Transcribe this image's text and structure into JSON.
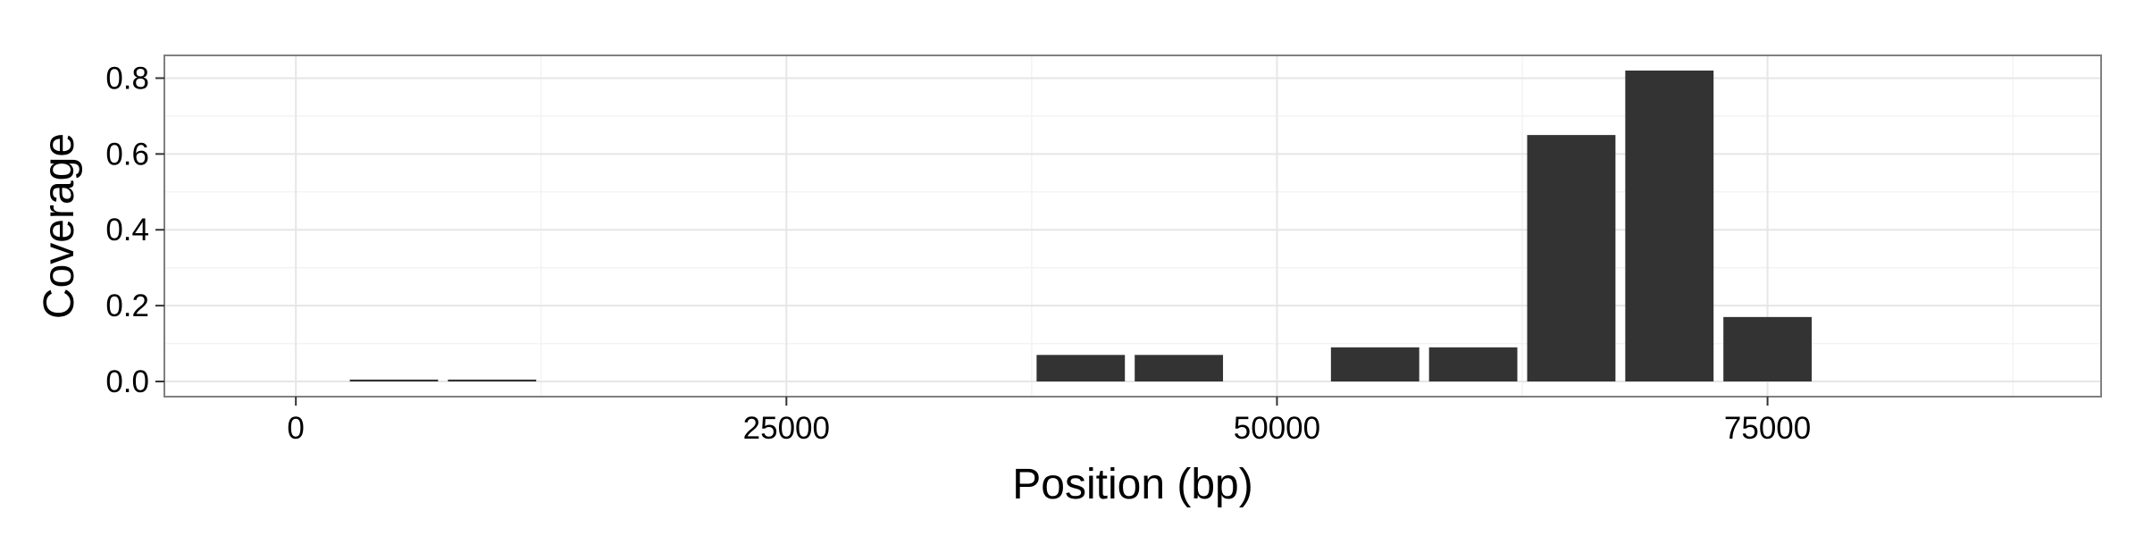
{
  "chart_data": {
    "type": "bar",
    "title": "",
    "xlabel": "Position (bp)",
    "ylabel": "Coverage",
    "xlim": [
      -6700,
      92000
    ],
    "ylim": [
      -0.04,
      0.86
    ],
    "x_ticks": [
      0,
      25000,
      50000,
      75000
    ],
    "x_tick_labels": [
      "0",
      "25000",
      "50000",
      "75000"
    ],
    "y_ticks": [
      0.0,
      0.2,
      0.4,
      0.6,
      0.8
    ],
    "y_tick_labels": [
      "0.0",
      "0.2",
      "0.4",
      "0.6",
      "0.8"
    ],
    "bar_width": 4500,
    "x": [
      5000,
      10000,
      15000,
      20000,
      25000,
      30000,
      35000,
      40000,
      45000,
      50000,
      55000,
      60000,
      65000,
      70000,
      75000,
      80000,
      85000
    ],
    "values": [
      0.005,
      0.005,
      0.0,
      0.0,
      0.0,
      0.0,
      0.0,
      0.07,
      0.07,
      0.0,
      0.09,
      0.09,
      0.65,
      0.82,
      0.17,
      0.0,
      0.0
    ],
    "grid": true,
    "legend": "none",
    "bar_color": "#333333",
    "panel_background": "#ffffff"
  }
}
